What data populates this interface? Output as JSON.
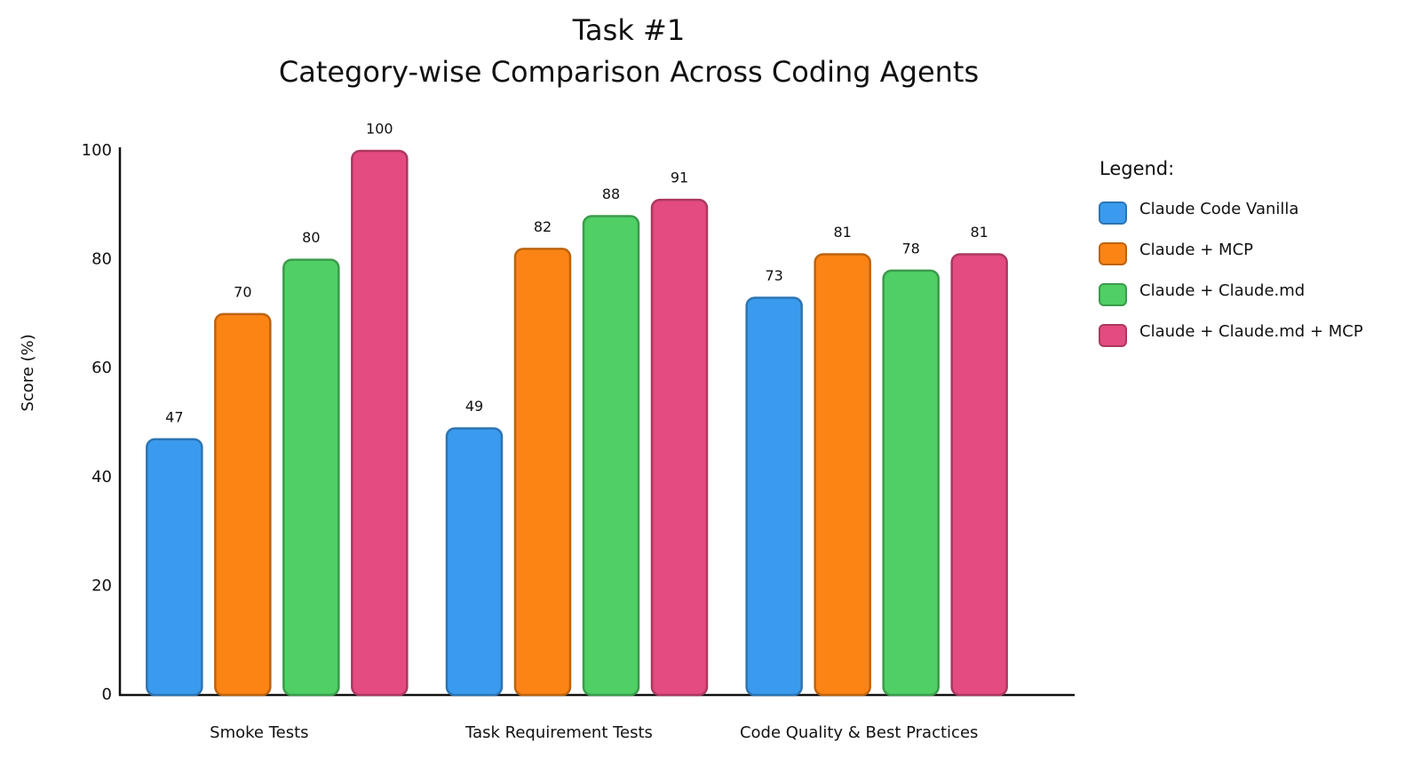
{
  "chart_data": {
    "type": "bar",
    "title": "Task #1",
    "subtitle": "Category-wise Comparison Across Coding Agents",
    "y_label": "Score (%)",
    "legend_title": "Legend:",
    "legend_position": "right",
    "categories": [
      "Smoke Tests",
      "Task Requirement Tests",
      "Code Quality & Best Practices"
    ],
    "series": [
      {
        "name": "Claude Code Vanilla",
        "color": "#3a9bee",
        "values": [
          47,
          49,
          73
        ]
      },
      {
        "name": "Claude + MCP",
        "color": "#fb8415",
        "values": [
          70,
          82,
          81
        ]
      },
      {
        "name": "Claude + Claude.md",
        "color": "#4fcf64",
        "values": [
          80,
          88,
          78
        ]
      },
      {
        "name": "Claude + Claude.md + MCP",
        "color": "#e44b80",
        "values": [
          100,
          91,
          81
        ]
      }
    ],
    "ylim": [
      0,
      100
    ],
    "yticks": [
      0,
      20,
      40,
      60,
      80,
      100
    ],
    "grid": false
  }
}
